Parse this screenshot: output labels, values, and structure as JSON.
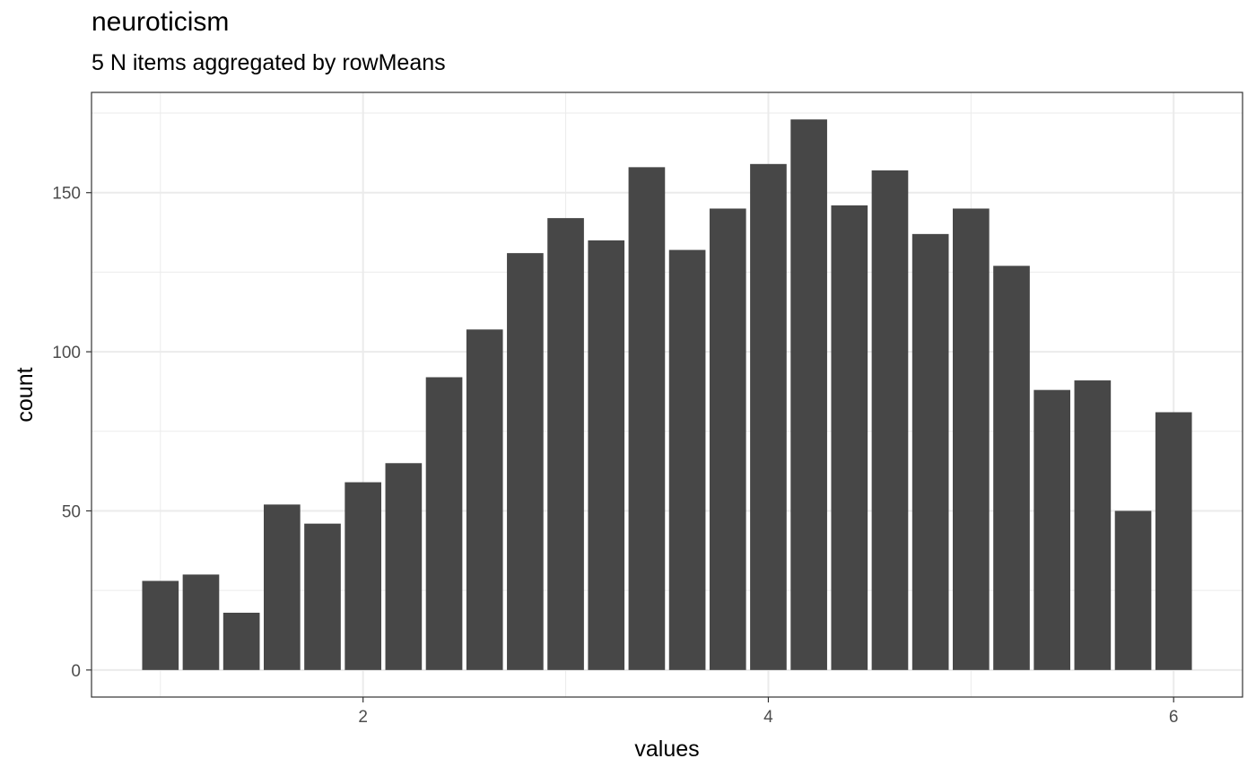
{
  "chart_data": {
    "type": "bar",
    "title": "neuroticism",
    "subtitle": "5 N items aggregated by rowMeans",
    "xlabel": "values",
    "ylabel": "count",
    "x": [
      1.0,
      1.2,
      1.4,
      1.6,
      1.8,
      2.0,
      2.2,
      2.4,
      2.6,
      2.8,
      3.0,
      3.2,
      3.4,
      3.6,
      3.8,
      4.0,
      4.2,
      4.4,
      4.6,
      4.8,
      5.0,
      5.2,
      5.4,
      5.6,
      5.8,
      6.0
    ],
    "values": [
      28,
      30,
      18,
      52,
      46,
      59,
      65,
      92,
      107,
      131,
      142,
      135,
      158,
      132,
      145,
      159,
      173,
      146,
      157,
      137,
      145,
      127,
      88,
      91,
      50,
      81
    ],
    "bar_width": 0.18,
    "xlim": [
      0.66,
      6.34
    ],
    "ylim": [
      -8.5,
      181.5
    ],
    "x_ticks": [
      2,
      4,
      6
    ],
    "x_minor_ticks": [
      1,
      3,
      5
    ],
    "y_ticks": [
      0,
      50,
      100,
      150
    ],
    "y_minor_ticks": [
      25,
      75,
      125,
      175
    ],
    "grid": true,
    "bar_color": "#474747",
    "theme": "bw"
  }
}
